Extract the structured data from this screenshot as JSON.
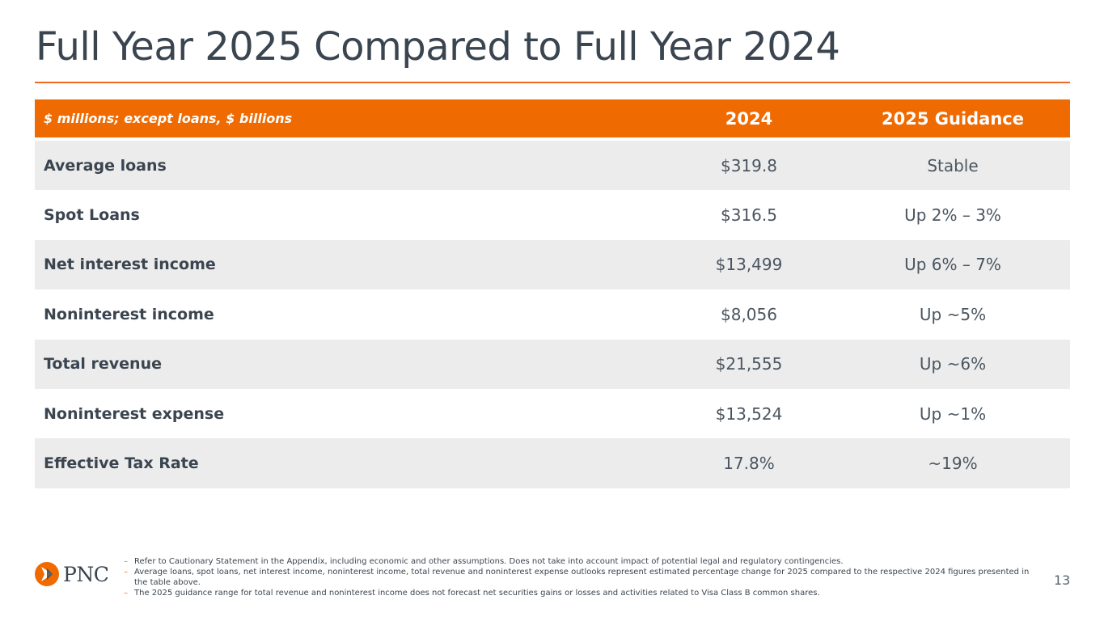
{
  "title": "Full Year 2025 Compared to Full Year 2024",
  "colors": {
    "accent": "#ef6a00",
    "text": "#3b4550",
    "row_shade": "#ececec"
  },
  "table": {
    "header": {
      "label": "$ millions; except loans, $ billions",
      "col_2024": "2024",
      "col_guidance": "2025 Guidance"
    },
    "rows": [
      {
        "label": "Average loans",
        "v2024": "$319.8",
        "guidance": "Stable"
      },
      {
        "label": "Spot Loans",
        "v2024": "$316.5",
        "guidance": "Up 2% – 3%"
      },
      {
        "label": "Net interest income",
        "v2024": "$13,499",
        "guidance": "Up 6% – 7%"
      },
      {
        "label": "Noninterest income",
        "v2024": "$8,056",
        "guidance": "Up ~5%"
      },
      {
        "label": "Total revenue",
        "v2024": "$21,555",
        "guidance": "Up ~6%"
      },
      {
        "label": "Noninterest expense",
        "v2024": "$13,524",
        "guidance": "Up ~1%"
      },
      {
        "label": "Effective Tax Rate",
        "v2024": "17.8%",
        "guidance": "~19%"
      }
    ]
  },
  "logo": {
    "text": "PNC",
    "icon": "pnc-logo-icon"
  },
  "footnotes": [
    "Refer to Cautionary Statement in the Appendix, including economic and other assumptions. Does not take into account impact of potential legal and regulatory contingencies.",
    "Average loans, spot loans, net interest income, noninterest income, total revenue and noninterest expense outlooks represent estimated percentage change for 2025 compared to the respective 2024 figures presented in the table above.",
    "The 2025 guidance range for total revenue and noninterest income does not forecast net securities gains or losses and activities related to Visa Class B common shares."
  ],
  "footnote_bullet": "–",
  "page_number": "13"
}
